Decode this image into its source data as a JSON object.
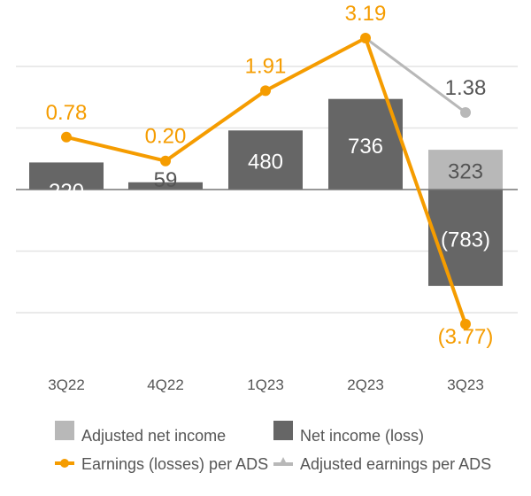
{
  "chart_data": {
    "type": "bar+line",
    "categories": [
      "3Q22",
      "4Q22",
      "1Q23",
      "2Q23",
      "3Q23"
    ],
    "bar_series": [
      {
        "name": "Net income (loss)",
        "color": "#666666",
        "values": [
          220,
          59,
          480,
          736,
          -783
        ],
        "labels": [
          "220",
          "59",
          "480",
          "736",
          "(783)"
        ]
      },
      {
        "name": "Adjusted net income",
        "color": "#b8b8b8",
        "values": [
          null,
          null,
          null,
          null,
          323
        ],
        "labels": [
          "",
          "",
          "",
          "",
          "323"
        ]
      }
    ],
    "line_series": [
      {
        "name": "Earnings (losses) per ADS",
        "color": "#f59c00",
        "values": [
          0.78,
          0.2,
          1.91,
          3.19,
          -3.77
        ],
        "labels": [
          "0.78",
          "0.20",
          "1.91",
          "3.19",
          "(3.77)"
        ]
      },
      {
        "name": "Adjusted earnings per ADS",
        "color": "#b8b8b8",
        "values": [
          null,
          null,
          null,
          3.19,
          1.38
        ],
        "labels": [
          "",
          "",
          "",
          "",
          "1.38"
        ]
      }
    ],
    "grid": true,
    "legend_position": "bottom"
  }
}
